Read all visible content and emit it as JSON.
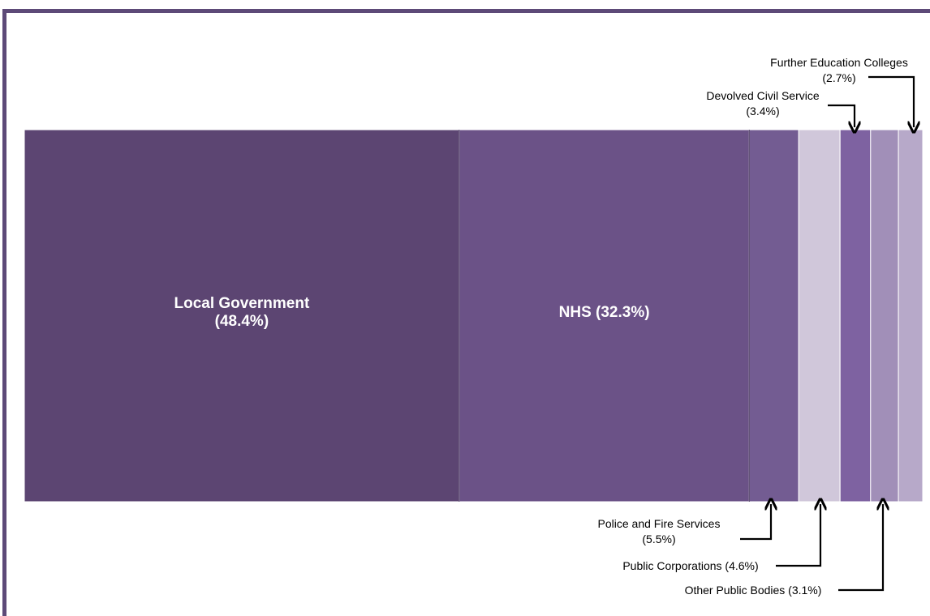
{
  "chart_data": {
    "type": "bar",
    "orientation": "horizontal-stacked-100",
    "title": "",
    "segments": [
      {
        "name": "Local Government",
        "value": 48.4,
        "color": "#5c4572",
        "label_lines": [
          "Local Government",
          "(48.4%)"
        ],
        "label_style": "inside"
      },
      {
        "name": "NHS",
        "value": 32.3,
        "color": "#6b5287",
        "label_lines": [
          "NHS (32.3%)"
        ],
        "label_style": "inside"
      },
      {
        "name": "Police and Fire Services",
        "value": 5.5,
        "color": "#735c92",
        "label_lines": [
          "Police and Fire Services",
          "(5.5%)"
        ],
        "label_style": "below"
      },
      {
        "name": "Public Corporations",
        "value": 4.6,
        "color": "#d0c7da",
        "label_lines": [
          "Public Corporations (4.6%)"
        ],
        "label_style": "below"
      },
      {
        "name": "Devolved Civil Service",
        "value": 3.4,
        "color": "#7e62a1",
        "label_lines": [
          "Devolved Civil Service",
          "(3.4%)"
        ],
        "label_style": "above"
      },
      {
        "name": "Other Public Bodies",
        "value": 3.1,
        "color": "#a18fb8",
        "label_lines": [
          "Other Public Bodies (3.1%)"
        ],
        "label_style": "below"
      },
      {
        "name": "Further Education Colleges",
        "value": 2.7,
        "color": "#b7a9c9",
        "label_lines": [
          "Further Education Colleges",
          "(2.7%)"
        ],
        "label_style": "above"
      }
    ]
  },
  "colors": {
    "frame_border": "#5d4a78",
    "segment_divider": "#4a3a60",
    "segment_outline": "#ffffff"
  }
}
